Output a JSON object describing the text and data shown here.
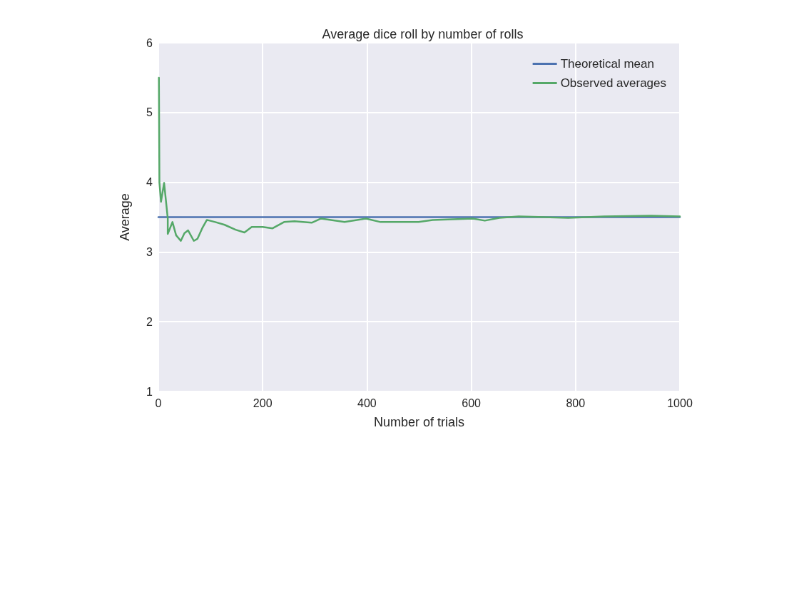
{
  "chart_data": {
    "type": "line",
    "title": "Average dice roll by number of rolls",
    "xlabel": "Number of trials",
    "ylabel": "Average",
    "xlim": [
      0,
      1000
    ],
    "xticks": [
      0,
      200,
      400,
      600,
      800,
      1000
    ],
    "ylim": [
      1,
      6
    ],
    "yticks": [
      1,
      2,
      3,
      4,
      5,
      6
    ],
    "grid": true,
    "legend": "top right",
    "marker": "none",
    "line_style": "solid",
    "series": [
      {
        "name": "Theoretical mean",
        "color": "#4c72b0",
        "x": [
          0,
          1000
        ],
        "values": [
          3.5,
          3.5
        ]
      },
      {
        "name": "Observed averages",
        "color": "#55a868",
        "x": [
          1,
          2,
          5,
          11,
          18,
          18,
          27,
          34,
          43,
          50,
          57,
          68,
          75,
          84,
          93,
          109,
          127,
          148,
          165,
          179,
          200,
          219,
          241,
          261,
          294,
          312,
          357,
          398,
          426,
          499,
          526,
          603,
          626,
          654,
          691,
          786,
          855,
          945,
          1000
        ],
        "values": [
          5.5,
          4.0,
          3.72,
          3.99,
          3.48,
          3.26,
          3.43,
          3.24,
          3.16,
          3.27,
          3.31,
          3.16,
          3.19,
          3.34,
          3.46,
          3.43,
          3.39,
          3.32,
          3.28,
          3.36,
          3.36,
          3.34,
          3.43,
          3.44,
          3.42,
          3.48,
          3.43,
          3.48,
          3.43,
          3.43,
          3.46,
          3.48,
          3.45,
          3.49,
          3.51,
          3.49,
          3.51,
          3.52,
          3.51
        ]
      }
    ]
  }
}
